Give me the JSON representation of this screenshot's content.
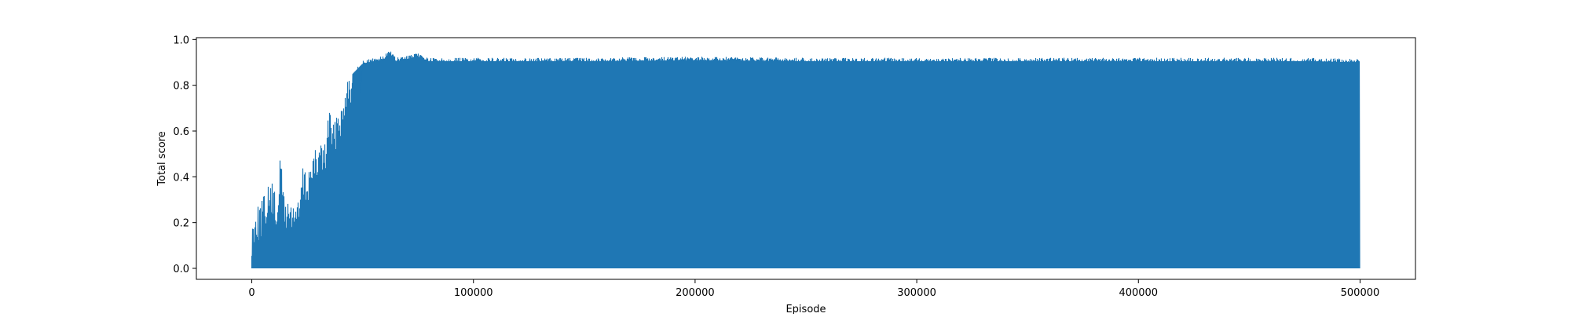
{
  "chart_data": {
    "type": "line",
    "title": "",
    "xlabel": "Episode",
    "ylabel": "Total score",
    "xlim": [
      -25000,
      525000
    ],
    "ylim": [
      -0.048,
      1.008
    ],
    "x_ticks": [
      0,
      100000,
      200000,
      300000,
      400000,
      500000
    ],
    "x_tick_labels": [
      "0",
      "100000",
      "200000",
      "300000",
      "400000",
      "500000"
    ],
    "y_ticks": [
      0.0,
      0.2,
      0.4,
      0.6,
      0.8,
      1.0
    ],
    "y_tick_labels": [
      "0.0",
      "0.2",
      "0.4",
      "0.6",
      "0.8",
      "1.0"
    ],
    "grid": false,
    "legend": "none",
    "color": "#1f77b4",
    "series": [
      {
        "x_range": [
          0,
          500000
        ],
        "min_value": 0.0,
        "peak_envelope": {
          "x": [
            0,
            500,
            1500,
            3000,
            5000,
            7000,
            9000,
            11000,
            13000,
            15000,
            17000,
            19000,
            21000,
            23000,
            25000,
            27000,
            29000,
            31000,
            33000,
            35000,
            37000,
            39000,
            41000,
            43000,
            45000,
            47000,
            50000,
            55000,
            60000,
            62000,
            65000,
            70000,
            75000,
            80000,
            90000,
            100000,
            110000,
            150000,
            200000,
            250000,
            300000,
            350000,
            400000,
            450000,
            480000,
            500000
          ],
          "y": [
            0.15,
            0.25,
            0.29,
            0.28,
            0.31,
            0.36,
            0.39,
            0.31,
            0.5,
            0.32,
            0.31,
            0.32,
            0.3,
            0.45,
            0.43,
            0.5,
            0.52,
            0.58,
            0.55,
            0.73,
            0.62,
            0.75,
            0.72,
            0.9,
            0.86,
            0.88,
            0.91,
            0.92,
            0.93,
            0.96,
            0.92,
            0.93,
            0.94,
            0.92,
            0.92,
            0.92,
            0.92,
            0.92,
            0.925,
            0.92,
            0.92,
            0.92,
            0.92,
            0.92,
            0.92,
            0.915
          ]
        }
      }
    ]
  }
}
